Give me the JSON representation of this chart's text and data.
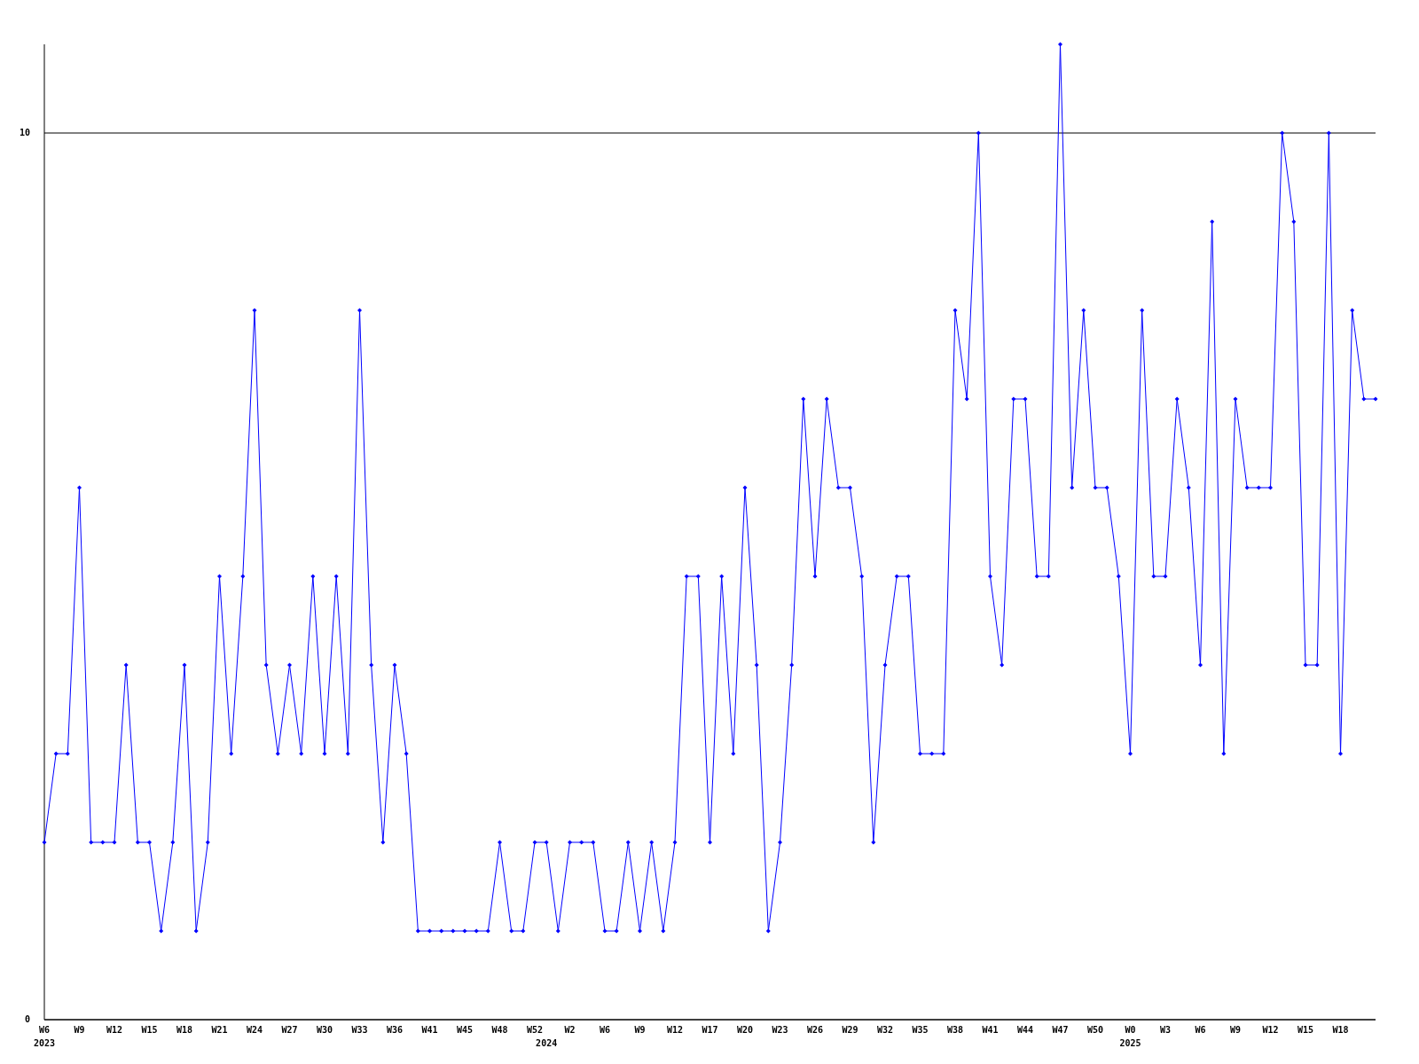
{
  "chart_data": {
    "type": "line",
    "categories": [
      "W6\n2023",
      null,
      null,
      "W9",
      null,
      null,
      "W12",
      null,
      null,
      "W15",
      null,
      null,
      "W18",
      null,
      null,
      "W21",
      null,
      null,
      "W24",
      null,
      null,
      "W27",
      null,
      null,
      "W30",
      null,
      null,
      "W33",
      null,
      null,
      "W36",
      null,
      null,
      "W41",
      null,
      null,
      "W45",
      null,
      null,
      "W48",
      null,
      null,
      "W52",
      "\n2024",
      null,
      "W2",
      null,
      null,
      "W6",
      null,
      null,
      "W9",
      null,
      null,
      "W12",
      null,
      null,
      "W17",
      null,
      null,
      "W20",
      null,
      null,
      "W23",
      null,
      null,
      "W26",
      null,
      null,
      "W29",
      null,
      null,
      "W32",
      null,
      null,
      "W35",
      null,
      null,
      "W38",
      null,
      null,
      "W41",
      null,
      null,
      "W44",
      null,
      null,
      "W47",
      null,
      null,
      "W50",
      null,
      null,
      "W0\n2025",
      null,
      null,
      "W3",
      null,
      null,
      "W6",
      null,
      null,
      "W9",
      null,
      null,
      "W12",
      null,
      null,
      "W15",
      null,
      null,
      "W18",
      null,
      null,
      null
    ],
    "series": [
      {
        "color": "#0000ff",
        "values": [
          2,
          3,
          3,
          6,
          2,
          2,
          2,
          4,
          2,
          2,
          1,
          2,
          4,
          1,
          2,
          5,
          3,
          5,
          8,
          4,
          3,
          4,
          3,
          5,
          3,
          5,
          3,
          8,
          4,
          2,
          4,
          3,
          1,
          1,
          1,
          1,
          1,
          1,
          1,
          2,
          1,
          1,
          2,
          2,
          1,
          2,
          2,
          2,
          1,
          1,
          2,
          1,
          2,
          1,
          2,
          5,
          5,
          2,
          5,
          3,
          6,
          4,
          1,
          2,
          4,
          7,
          5,
          7,
          6,
          6,
          5,
          2,
          4,
          5,
          5,
          3,
          3,
          3,
          8,
          7,
          10,
          5,
          4,
          7,
          7,
          5,
          5,
          11,
          6,
          8,
          6,
          6,
          5,
          3,
          8,
          5,
          5,
          7,
          6,
          4,
          9,
          3,
          7,
          6,
          6,
          6,
          10,
          9,
          4,
          4,
          10,
          3,
          8,
          7,
          7
        ]
      }
    ],
    "ylim": [
      0,
      11
    ],
    "yticks": [
      0,
      10
    ],
    "grid": "y",
    "marker": "diamond",
    "line_style": "solid"
  }
}
